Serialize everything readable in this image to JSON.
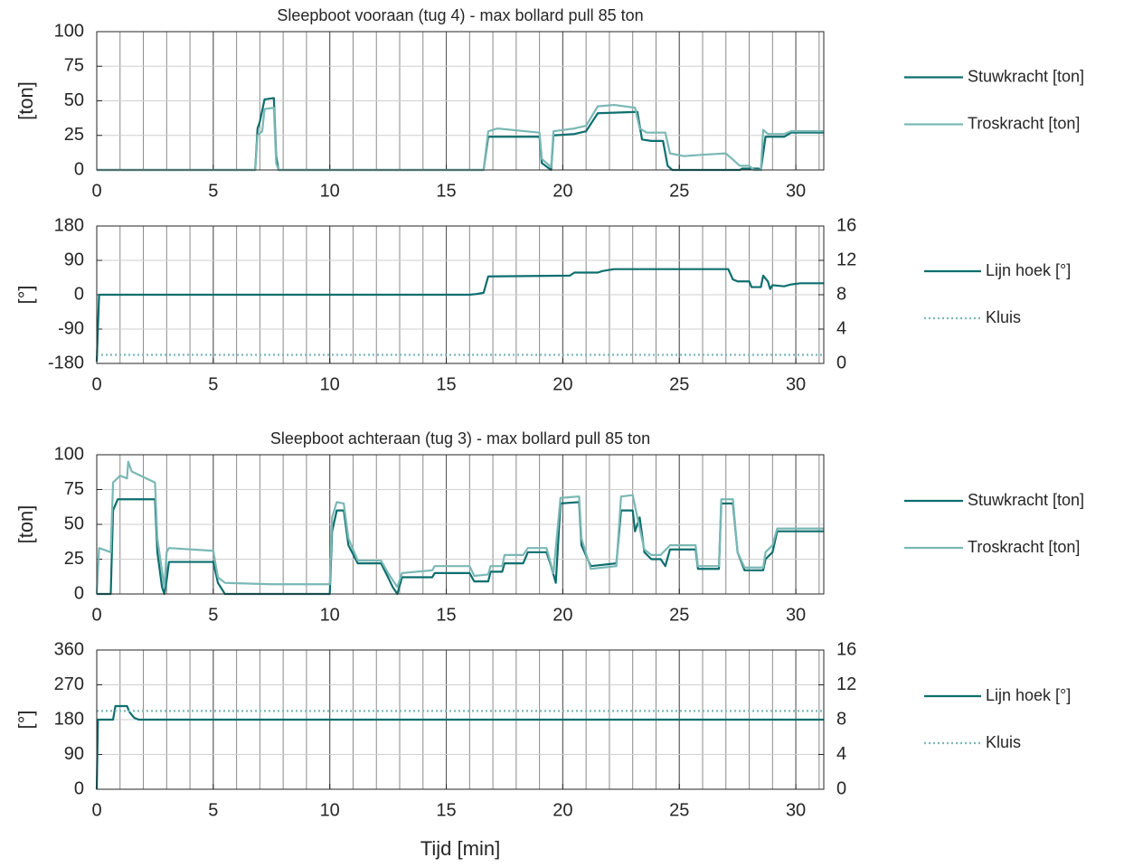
{
  "chart_data": [
    {
      "type": "line",
      "title": "Sleepboot vooraan (tug 4) - max bollard pull 85 ton",
      "ylabel": "[ton]",
      "xlim": [
        0,
        31.2
      ],
      "xticks": [
        0,
        5,
        10,
        15,
        20,
        25,
        30
      ],
      "ylim": [
        0,
        100
      ],
      "yticks": [
        0,
        25,
        50,
        75,
        100
      ],
      "grid": true,
      "minor_grid": true,
      "legend": "right",
      "series": [
        {
          "name": "Stuwkracht [ton]",
          "color": "#0d6e6e",
          "linestyle": "solid",
          "x": [
            0,
            6.8,
            6.9,
            7.0,
            7.2,
            7.6,
            7.7,
            7.8,
            16.6,
            16.8,
            19.0,
            19.1,
            19.5,
            19.6,
            20.5,
            21.0,
            21.5,
            23.2,
            23.4,
            23.8,
            24.3,
            24.5,
            24.7,
            27.6,
            27.7,
            28.4,
            28.5,
            28.7,
            29.5,
            29.8,
            31.2
          ],
          "values": [
            0,
            0,
            30,
            35,
            51,
            52,
            10,
            0,
            0,
            24,
            24,
            5,
            0,
            25,
            26,
            28,
            41,
            42,
            22,
            21,
            21,
            3,
            0,
            0,
            1,
            1,
            0,
            24,
            24,
            27,
            27
          ]
        },
        {
          "name": "Troskracht [ton]",
          "color": "#7ab8b5",
          "linestyle": "solid",
          "x": [
            0,
            6.8,
            6.9,
            7.1,
            7.2,
            7.6,
            7.7,
            7.8,
            16.6,
            16.8,
            17.2,
            19.0,
            19.1,
            19.5,
            19.6,
            20.5,
            21.0,
            21.5,
            22.2,
            23.1,
            23.3,
            23.6,
            24.4,
            24.6,
            25.2,
            26.0,
            27.0,
            27.6,
            28.0,
            28.2,
            28.5,
            28.6,
            28.8,
            29.5,
            29.8,
            31.2
          ],
          "values": [
            0,
            0,
            25,
            28,
            44,
            45,
            5,
            0,
            0,
            28,
            30,
            27,
            8,
            2,
            28,
            30,
            32,
            46,
            47,
            45,
            30,
            27,
            27,
            12,
            10,
            11,
            12,
            3,
            3,
            0,
            0,
            29,
            26,
            26,
            28,
            28
          ]
        }
      ]
    },
    {
      "type": "line",
      "ylabel": "[°]",
      "xlim": [
        0,
        31.2
      ],
      "xticks": [
        0,
        5,
        10,
        15,
        20,
        25,
        30
      ],
      "ylim": [
        -180,
        180
      ],
      "yticks": [
        -180,
        -90,
        0,
        90,
        180
      ],
      "y2lim": [
        0,
        16
      ],
      "y2ticks": [
        0,
        4,
        8,
        12,
        16
      ],
      "grid": true,
      "minor_grid": true,
      "legend": "right",
      "series": [
        {
          "name": "Lijn hoek [°]",
          "color": "#0d6e6e",
          "linestyle": "solid",
          "x": [
            0,
            0.1,
            16.0,
            16.3,
            16.6,
            16.8,
            20.3,
            20.5,
            21.5,
            21.7,
            22.2,
            27.1,
            27.3,
            27.5,
            28.0,
            28.1,
            28.5,
            28.6,
            28.8,
            28.9,
            29.0,
            29.5,
            29.8,
            30.2,
            31.2
          ],
          "values": [
            -175,
            0,
            0,
            2,
            5,
            48,
            50,
            58,
            58,
            62,
            67,
            67,
            40,
            35,
            35,
            20,
            20,
            50,
            35,
            15,
            25,
            22,
            27,
            30,
            30
          ]
        },
        {
          "name": "Kluis",
          "color": "#7ab8b5",
          "linestyle": "dotted",
          "axis": "y2",
          "x": [
            0,
            31.2
          ],
          "values": [
            1,
            1
          ]
        }
      ]
    },
    {
      "type": "line",
      "title": "Sleepboot achteraan (tug 3) - max bollard pull 85 ton",
      "ylabel": "[ton]",
      "xlim": [
        0,
        31.2
      ],
      "xticks": [
        0,
        5,
        10,
        15,
        20,
        25,
        30
      ],
      "ylim": [
        0,
        100
      ],
      "yticks": [
        0,
        25,
        50,
        75,
        100
      ],
      "grid": true,
      "minor_grid": true,
      "legend": "right",
      "series": [
        {
          "name": "Stuwkracht [ton]",
          "color": "#0d6e6e",
          "linestyle": "solid",
          "x": [
            0,
            0.6,
            0.7,
            0.9,
            2.5,
            2.6,
            2.8,
            2.9,
            3.0,
            3.1,
            5.0,
            5.2,
            5.5,
            10.0,
            10.1,
            10.3,
            10.6,
            10.8,
            11.2,
            12.2,
            12.5,
            12.7,
            12.9,
            13.1,
            14.4,
            14.5,
            16.0,
            16.2,
            16.8,
            16.9,
            17.4,
            17.5,
            18.3,
            18.5,
            19.3,
            19.5,
            19.7,
            19.9,
            20.7,
            20.8,
            21.2,
            22.3,
            22.5,
            23.0,
            23.1,
            23.3,
            23.5,
            23.8,
            24.2,
            24.4,
            24.6,
            25.7,
            25.8,
            26.7,
            26.8,
            27.3,
            27.5,
            27.8,
            28.6,
            28.7,
            29.0,
            29.2,
            31.2
          ],
          "values": [
            0,
            0,
            60,
            68,
            68,
            30,
            5,
            0,
            10,
            23,
            23,
            8,
            0,
            0,
            45,
            60,
            60,
            35,
            22,
            22,
            12,
            5,
            0,
            12,
            12,
            15,
            15,
            9,
            9,
            16,
            16,
            22,
            22,
            30,
            30,
            20,
            8,
            65,
            66,
            35,
            20,
            22,
            60,
            60,
            45,
            55,
            30,
            25,
            25,
            20,
            32,
            32,
            18,
            18,
            65,
            65,
            30,
            17,
            17,
            25,
            30,
            45,
            45
          ]
        },
        {
          "name": "Troskracht [ton]",
          "color": "#7ab8b5",
          "linestyle": "solid",
          "x": [
            0,
            0.1,
            0.6,
            0.7,
            1.0,
            1.3,
            1.35,
            1.5,
            2.5,
            2.6,
            2.9,
            3.0,
            3.1,
            5.0,
            5.2,
            5.5,
            7.5,
            10.0,
            10.1,
            10.3,
            10.6,
            10.8,
            11.2,
            12.2,
            12.5,
            12.9,
            13.1,
            14.4,
            14.5,
            16.0,
            16.2,
            16.8,
            16.9,
            17.4,
            17.5,
            18.3,
            18.5,
            19.3,
            19.6,
            19.9,
            20.7,
            20.8,
            21.2,
            22.3,
            22.5,
            23.0,
            23.2,
            23.5,
            23.8,
            24.2,
            24.6,
            25.7,
            25.8,
            26.7,
            26.8,
            27.3,
            27.5,
            27.8,
            28.6,
            28.7,
            29.0,
            29.2,
            31.2
          ],
          "values": [
            0,
            33,
            30,
            80,
            85,
            83,
            95,
            88,
            80,
            40,
            5,
            30,
            33,
            31,
            12,
            8,
            7,
            7,
            55,
            66,
            65,
            40,
            24,
            24,
            15,
            5,
            15,
            17,
            20,
            20,
            13,
            14,
            20,
            20,
            28,
            28,
            33,
            33,
            15,
            69,
            70,
            40,
            18,
            20,
            70,
            71,
            55,
            32,
            28,
            28,
            35,
            35,
            20,
            20,
            68,
            68,
            30,
            19,
            19,
            30,
            35,
            47,
            47
          ]
        }
      ]
    },
    {
      "type": "line",
      "ylabel": "[°]",
      "xlabel": "Tijd [min]",
      "xlim": [
        0,
        31.2
      ],
      "xticks": [
        0,
        5,
        10,
        15,
        20,
        25,
        30
      ],
      "ylim": [
        0,
        360
      ],
      "yticks": [
        0,
        90,
        180,
        270,
        360
      ],
      "y2lim": [
        0,
        16
      ],
      "y2ticks": [
        0,
        4,
        8,
        12,
        16
      ],
      "grid": true,
      "minor_grid": true,
      "legend": "right",
      "series": [
        {
          "name": "Lijn hoek [°]",
          "color": "#0d6e6e",
          "linestyle": "solid",
          "x": [
            0,
            0.05,
            0.7,
            0.8,
            1.3,
            1.4,
            1.6,
            1.8,
            31.2
          ],
          "values": [
            0,
            180,
            180,
            215,
            215,
            200,
            185,
            180,
            180
          ]
        },
        {
          "name": "Kluis",
          "color": "#7ab8b5",
          "linestyle": "dotted",
          "axis": "y2",
          "x": [
            0,
            31.2
          ],
          "values": [
            9,
            9
          ]
        }
      ]
    }
  ]
}
